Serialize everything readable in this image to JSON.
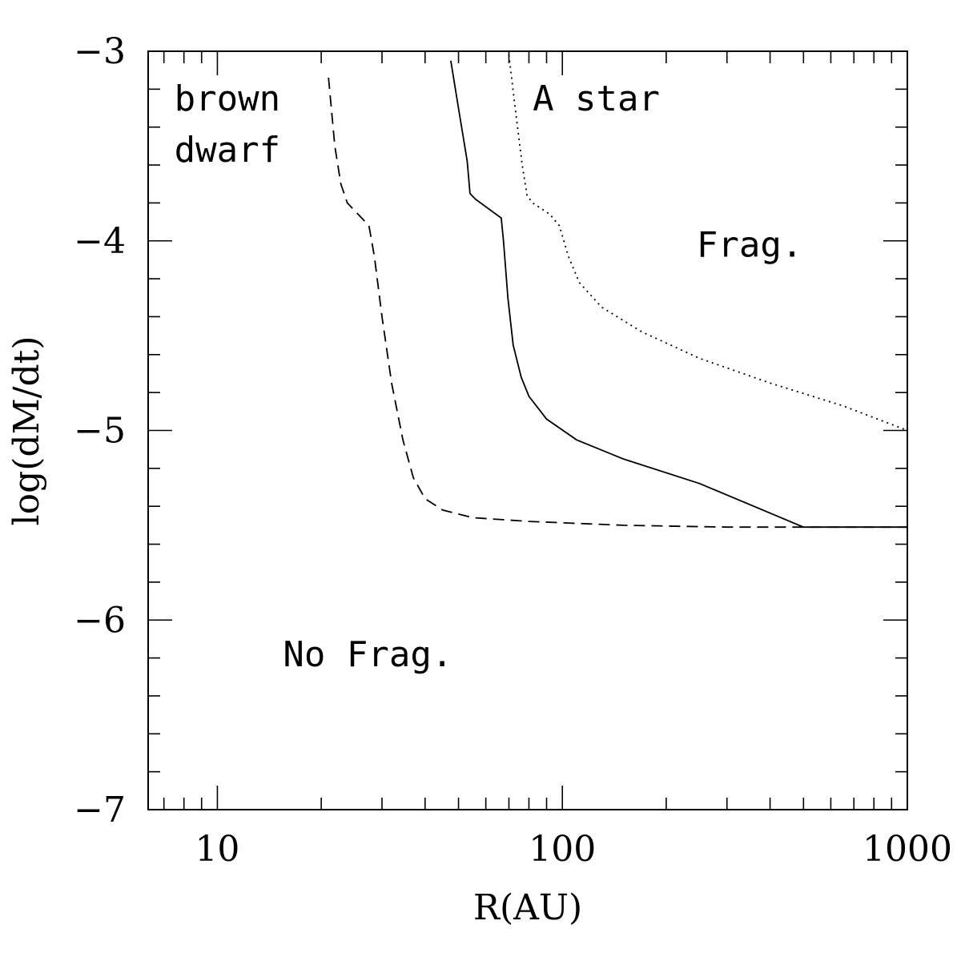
{
  "chart_data": {
    "type": "line",
    "title": "",
    "xlabel": "R(AU)",
    "ylabel": "log(dM/dt)",
    "xscale": "log",
    "xlim": [
      6.3,
      1000
    ],
    "ylim": [
      -7,
      -3
    ],
    "grid": false,
    "x_ticks": [
      {
        "value": 10,
        "label": "10"
      },
      {
        "value": 100,
        "label": "100"
      },
      {
        "value": 1000,
        "label": "1000"
      }
    ],
    "y_ticks": [
      {
        "value": -3,
        "label": "−3"
      },
      {
        "value": -4,
        "label": "−4"
      },
      {
        "value": -5,
        "label": "−5"
      },
      {
        "value": -6,
        "label": "−6"
      },
      {
        "value": -7,
        "label": "−7"
      }
    ],
    "series": [
      {
        "style": "dashed",
        "points": [
          [
            21,
            -3.14
          ],
          [
            21.9,
            -3.5
          ],
          [
            22.8,
            -3.7
          ],
          [
            23.8,
            -3.8
          ],
          [
            27.5,
            -3.92
          ],
          [
            28.5,
            -4.08
          ],
          [
            30,
            -4.4
          ],
          [
            32,
            -4.75
          ],
          [
            34.5,
            -5.05
          ],
          [
            37,
            -5.25
          ],
          [
            40,
            -5.36
          ],
          [
            45,
            -5.42
          ],
          [
            55,
            -5.46
          ],
          [
            80,
            -5.48
          ],
          [
            150,
            -5.5
          ],
          [
            300,
            -5.51
          ],
          [
            600,
            -5.51
          ],
          [
            1000,
            -5.51
          ]
        ]
      },
      {
        "style": "solid",
        "points": [
          [
            47.5,
            -3.05
          ],
          [
            50,
            -3.3
          ],
          [
            53,
            -3.58
          ],
          [
            54,
            -3.75
          ],
          [
            56,
            -3.78
          ],
          [
            66.5,
            -3.88
          ],
          [
            67.5,
            -4.0
          ],
          [
            69.5,
            -4.3
          ],
          [
            72,
            -4.55
          ],
          [
            76,
            -4.72
          ],
          [
            80,
            -4.82
          ],
          [
            90,
            -4.94
          ],
          [
            110,
            -5.05
          ],
          [
            150,
            -5.15
          ],
          [
            250,
            -5.28
          ],
          [
            500,
            -5.51
          ],
          [
            1000,
            -5.51
          ]
        ]
      },
      {
        "style": "dotted",
        "points": [
          [
            70,
            -3.02
          ],
          [
            73,
            -3.3
          ],
          [
            76.5,
            -3.6
          ],
          [
            79,
            -3.76
          ],
          [
            82,
            -3.8
          ],
          [
            92,
            -3.86
          ],
          [
            98,
            -3.92
          ],
          [
            101,
            -4.0
          ],
          [
            104,
            -4.08
          ],
          [
            112,
            -4.22
          ],
          [
            130,
            -4.35
          ],
          [
            170,
            -4.48
          ],
          [
            250,
            -4.62
          ],
          [
            400,
            -4.75
          ],
          [
            650,
            -4.87
          ],
          [
            1000,
            -5.0
          ]
        ]
      }
    ],
    "annotations": [
      {
        "text": "brown",
        "x": 7.5,
        "y": -3.25
      },
      {
        "text": "dwarf",
        "x": 7.5,
        "y": -3.52
      },
      {
        "text": "A star",
        "x": 82,
        "y": -3.25
      },
      {
        "text": "Frag.",
        "x": 245,
        "y": -4.02
      },
      {
        "text": "No Frag.",
        "x": 15.5,
        "y": -6.18
      }
    ]
  }
}
